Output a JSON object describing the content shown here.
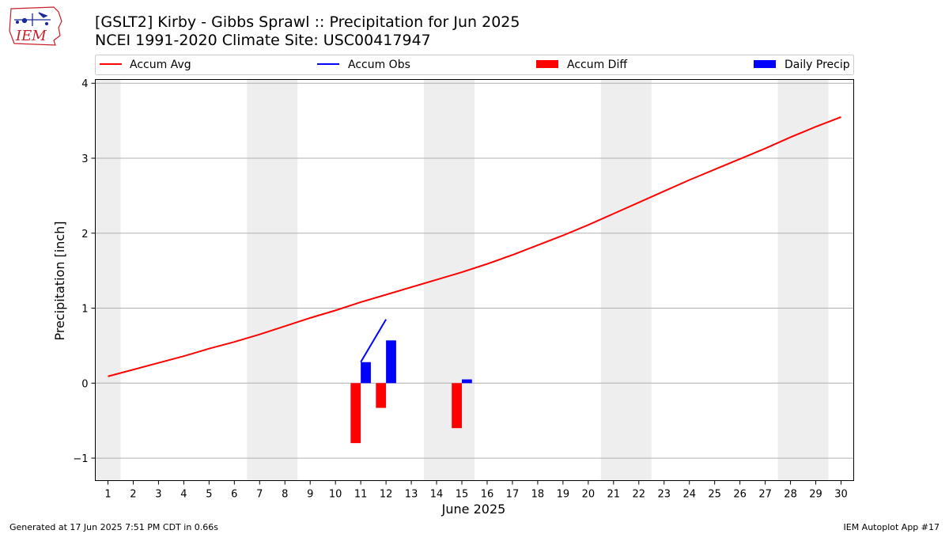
{
  "logo": {
    "text": "IEM",
    "color": "#c8202a"
  },
  "header": {
    "title_line1": "[GSLT2] Kirby - Gibbs Sprawl :: Precipitation for Jun 2025",
    "title_line2": "NCEI 1991-2020 Climate Site: USC00417947"
  },
  "footer": {
    "left": "Generated at 17 Jun 2025 7:51 PM CDT in 0.66s",
    "right": "IEM Autoplot App #17"
  },
  "chart_data": {
    "type": "bar",
    "xlabel": "June 2025",
    "ylabel": "Precipitation [inch]",
    "xlim": [
      0.5,
      30.5
    ],
    "ylim": [
      -1.3,
      4.05
    ],
    "yticks": [
      -1,
      0,
      1,
      2,
      3,
      4
    ],
    "ytick_labels": [
      "−1",
      "0",
      "1",
      "2",
      "3",
      "4"
    ],
    "grid": "horizontal",
    "legend_position": "top",
    "weekend_bands": [
      [
        0.5,
        1.5
      ],
      [
        6.5,
        8.5
      ],
      [
        13.5,
        15.5
      ],
      [
        20.5,
        22.5
      ],
      [
        27.5,
        29.5
      ]
    ],
    "days": [
      1,
      2,
      3,
      4,
      5,
      6,
      7,
      8,
      9,
      10,
      11,
      12,
      13,
      14,
      15,
      16,
      17,
      18,
      19,
      20,
      21,
      22,
      23,
      24,
      25,
      26,
      27,
      28,
      29,
      30
    ],
    "series": [
      {
        "name": "Accum Avg",
        "kind": "line",
        "color": "#ff0000",
        "x": [
          1,
          2,
          3,
          4,
          5,
          6,
          7,
          8,
          9,
          10,
          11,
          12,
          13,
          14,
          15,
          16,
          17,
          18,
          19,
          20,
          21,
          22,
          23,
          24,
          25,
          26,
          27,
          28,
          29,
          30
        ],
        "values": [
          0.09,
          0.18,
          0.27,
          0.36,
          0.46,
          0.55,
          0.65,
          0.76,
          0.87,
          0.97,
          1.08,
          1.18,
          1.28,
          1.38,
          1.48,
          1.59,
          1.71,
          1.84,
          1.97,
          2.11,
          2.26,
          2.41,
          2.56,
          2.71,
          2.85,
          2.99,
          3.13,
          3.28,
          3.42,
          3.55
        ]
      },
      {
        "name": "Accum Obs",
        "kind": "line",
        "color": "#0000ff",
        "x": [
          11,
          12
        ],
        "values": [
          0.28,
          0.85
        ]
      },
      {
        "name": "Accum Diff",
        "kind": "bar",
        "color": "#ff0000",
        "x": [
          11,
          12,
          15
        ],
        "values": [
          -0.8,
          -0.33,
          -0.6
        ]
      },
      {
        "name": "Daily Precip",
        "kind": "bar",
        "color": "#0000ff",
        "x": [
          11,
          12,
          15
        ],
        "values": [
          0.28,
          0.57,
          0.05
        ]
      }
    ]
  }
}
